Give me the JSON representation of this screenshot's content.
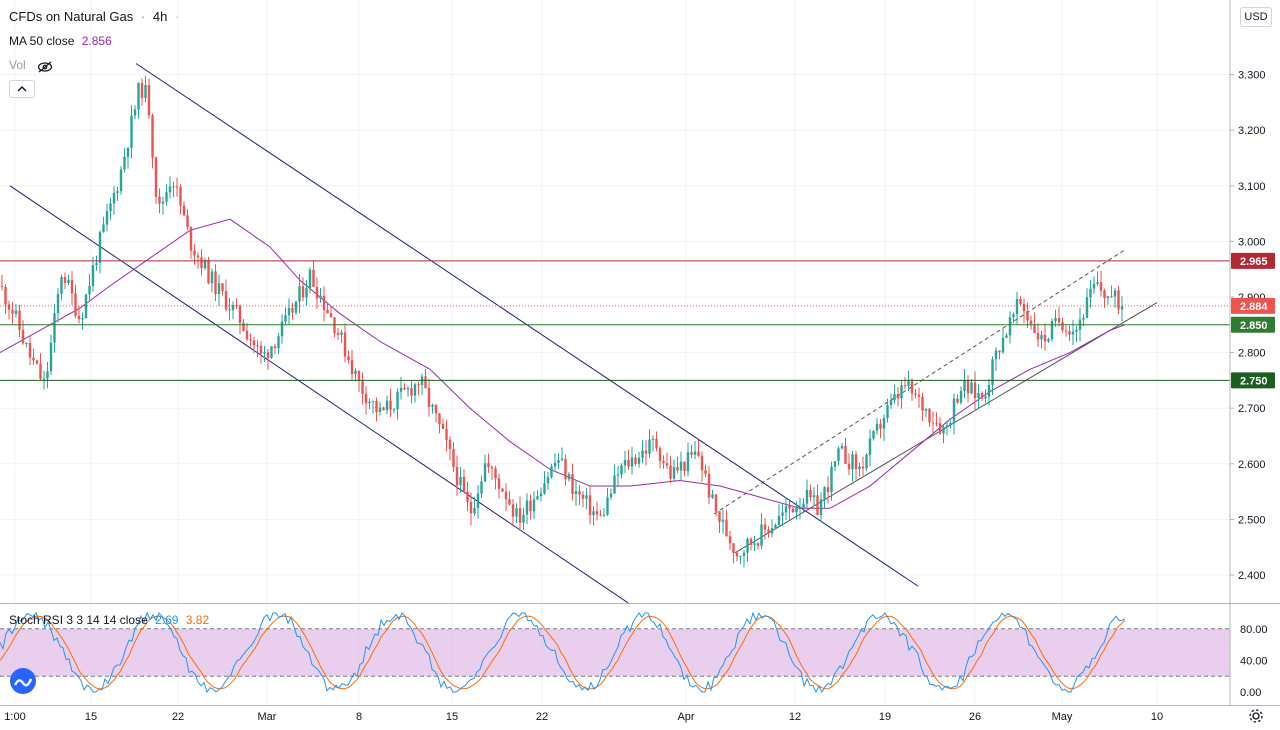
{
  "header": {
    "symbol": "CFDs on Natural Gas",
    "separator": "·",
    "interval": "4h",
    "dot": "·",
    "ma_label": "MA 50 close",
    "ma_value": "2.856",
    "vol_label": "Vol",
    "collapse": "^",
    "currency": "USD"
  },
  "colors": {
    "up": "#26a69a",
    "down": "#ef5350",
    "ma": "#9c27b0",
    "resistance": "#b22833",
    "support": "#1b5e20",
    "channel": "#1a237e",
    "stoch_k": "#2196f3",
    "stoch_d": "#ff6d00",
    "stoch_band": "#e1bee7",
    "last": "#ef5350"
  },
  "chart_data": {
    "type": "candlestick",
    "symbol": "CFDs on Natural Gas",
    "interval": "4h",
    "ylim": [
      2.35,
      3.35
    ],
    "y_ticks": [
      "3.300",
      "3.200",
      "3.100",
      "3.000",
      "2.900",
      "2.800",
      "2.700",
      "2.600",
      "2.500",
      "2.400"
    ],
    "x_ticks": [
      "1:00",
      "15",
      "22",
      "Mar",
      "8",
      "15",
      "22",
      "Apr",
      "12",
      "19",
      "26",
      "May",
      "10"
    ],
    "price_path": [
      [
        0,
        2.92
      ],
      [
        14,
        2.87
      ],
      [
        28,
        2.8
      ],
      [
        45,
        2.74
      ],
      [
        62,
        2.95
      ],
      [
        80,
        2.86
      ],
      [
        100,
        3.0
      ],
      [
        120,
        3.12
      ],
      [
        140,
        3.28
      ],
      [
        148,
        3.26
      ],
      [
        158,
        3.05
      ],
      [
        172,
        3.12
      ],
      [
        190,
        3.0
      ],
      [
        215,
        2.92
      ],
      [
        240,
        2.86
      ],
      [
        262,
        2.79
      ],
      [
        285,
        2.85
      ],
      [
        310,
        2.94
      ],
      [
        335,
        2.85
      ],
      [
        360,
        2.74
      ],
      [
        380,
        2.69
      ],
      [
        420,
        2.75
      ],
      [
        445,
        2.64
      ],
      [
        470,
        2.51
      ],
      [
        485,
        2.6
      ],
      [
        505,
        2.55
      ],
      [
        518,
        2.5
      ],
      [
        530,
        2.53
      ],
      [
        558,
        2.61
      ],
      [
        575,
        2.55
      ],
      [
        600,
        2.5
      ],
      [
        620,
        2.59
      ],
      [
        655,
        2.64
      ],
      [
        670,
        2.58
      ],
      [
        698,
        2.62
      ],
      [
        714,
        2.52
      ],
      [
        737,
        2.44
      ],
      [
        765,
        2.48
      ],
      [
        790,
        2.52
      ],
      [
        805,
        2.54
      ],
      [
        818,
        2.52
      ],
      [
        840,
        2.62
      ],
      [
        860,
        2.59
      ],
      [
        885,
        2.69
      ],
      [
        905,
        2.74
      ],
      [
        925,
        2.7
      ],
      [
        945,
        2.66
      ],
      [
        960,
        2.74
      ],
      [
        983,
        2.72
      ],
      [
        998,
        2.81
      ],
      [
        1020,
        2.89
      ],
      [
        1042,
        2.82
      ],
      [
        1060,
        2.86
      ],
      [
        1075,
        2.84
      ],
      [
        1095,
        2.92
      ],
      [
        1110,
        2.9
      ],
      [
        1125,
        2.884
      ]
    ],
    "ma50": {
      "name": "MA 50 close",
      "last": 2.856,
      "path": [
        [
          0,
          2.8
        ],
        [
          40,
          2.84
        ],
        [
          80,
          2.88
        ],
        [
          110,
          2.92
        ],
        [
          150,
          2.97
        ],
        [
          190,
          3.02
        ],
        [
          230,
          3.04
        ],
        [
          270,
          2.99
        ],
        [
          300,
          2.93
        ],
        [
          340,
          2.87
        ],
        [
          380,
          2.82
        ],
        [
          430,
          2.77
        ],
        [
          470,
          2.7
        ],
        [
          510,
          2.64
        ],
        [
          550,
          2.59
        ],
        [
          590,
          2.56
        ],
        [
          630,
          2.56
        ],
        [
          680,
          2.57
        ],
        [
          720,
          2.56
        ],
        [
          760,
          2.54
        ],
        [
          800,
          2.52
        ],
        [
          830,
          2.52
        ],
        [
          870,
          2.56
        ],
        [
          910,
          2.62
        ],
        [
          950,
          2.68
        ],
        [
          990,
          2.73
        ],
        [
          1030,
          2.77
        ],
        [
          1070,
          2.8
        ],
        [
          1110,
          2.84
        ],
        [
          1125,
          2.85
        ]
      ]
    },
    "horizontal_levels": [
      {
        "value": 2.965,
        "label": "2.965",
        "color": "#b22833"
      },
      {
        "value": 2.85,
        "label": "2.850",
        "color": "#2e7d32"
      },
      {
        "value": 2.75,
        "label": "2.750",
        "color": "#1b5e20"
      }
    ],
    "last_price": {
      "value": 2.884,
      "label": "2.884"
    },
    "trendlines": [
      {
        "style": "solid",
        "color": "#1a237e",
        "from": [
          10,
          3.1
        ],
        "to": [
          628,
          2.35
        ]
      },
      {
        "style": "solid",
        "color": "#1a237e",
        "from": [
          136,
          3.32
        ],
        "to": [
          918,
          2.38
        ]
      },
      {
        "style": "solid",
        "color": "#555555",
        "from": [
          735,
          2.44
        ],
        "to": [
          1157,
          2.89
        ]
      },
      {
        "style": "dashed",
        "color": "#555555",
        "from": [
          714,
          2.51
        ],
        "to": [
          1125,
          2.985
        ]
      }
    ],
    "stoch_rsi": {
      "label": "Stoch RSI 3 3 14 14 close",
      "k": "2.69",
      "d": "3.82",
      "ylim": [
        -5,
        110
      ],
      "ticks": [
        "80.00",
        "40.00",
        "0.00"
      ],
      "band": [
        20,
        80
      ]
    }
  }
}
